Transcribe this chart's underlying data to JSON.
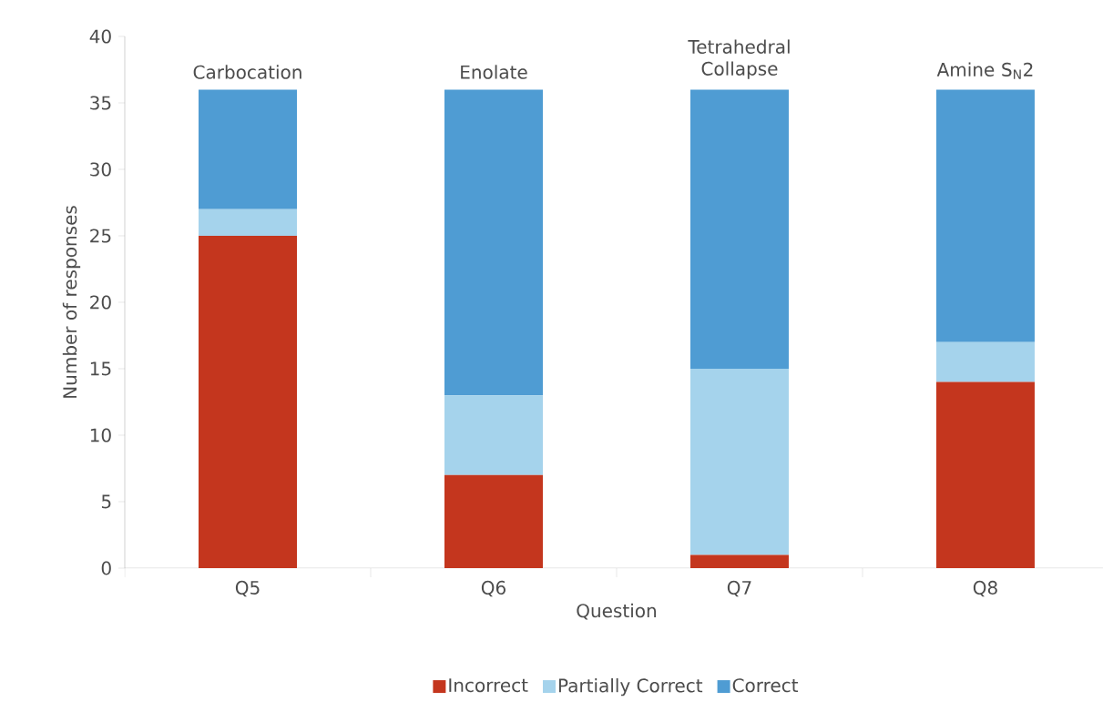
{
  "chart_data": {
    "type": "bar",
    "stacked": true,
    "xlabel": "Question",
    "ylabel": "Number of responses",
    "categories": [
      "Q5",
      "Q6",
      "Q7",
      "Q8"
    ],
    "series": [
      {
        "name": "Incorrect",
        "color": "#c4361e",
        "values": [
          25,
          7,
          1,
          14
        ]
      },
      {
        "name": "Partially Correct",
        "color": "#a5d3ec",
        "values": [
          2,
          6,
          14,
          3
        ]
      },
      {
        "name": "Correct",
        "color": "#4f9cd3",
        "values": [
          9,
          23,
          21,
          19
        ]
      }
    ],
    "ylim": [
      0,
      40
    ],
    "yticks": [
      0,
      5,
      10,
      15,
      20,
      25,
      30,
      35,
      40
    ],
    "legend": "bottom",
    "annotations": [
      "Carbocation",
      "Enolate",
      "Tetrahedral Collapse",
      "Amine S$_{N}$2"
    ]
  }
}
